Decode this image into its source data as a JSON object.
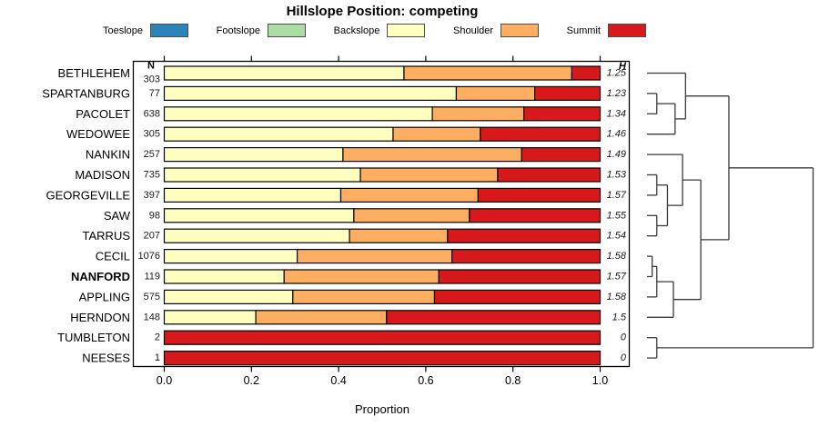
{
  "title": "Hillslope Position: competing",
  "legend": {
    "items": [
      {
        "label": "Toeslope",
        "color": "#2B83BA"
      },
      {
        "label": "Footslope",
        "color": "#ABDDA4"
      },
      {
        "label": "Backslope",
        "color": "#FFFFBF"
      },
      {
        "label": "Shoulder",
        "color": "#FDAE61"
      },
      {
        "label": "Summit",
        "color": "#D7191C"
      }
    ]
  },
  "x_axis": {
    "label": "Proportion",
    "ticks": [
      "0.0",
      "0.2",
      "0.4",
      "0.6",
      "0.8",
      "1.0"
    ],
    "range": [
      0,
      1
    ]
  },
  "table": {
    "n_header": "N",
    "h_header": "H"
  },
  "chart_data": {
    "type": "bar",
    "stacked": true,
    "orientation": "horizontal",
    "title": "Hillslope Position: competing",
    "xlabel": "Proportion",
    "xlim": [
      0,
      1
    ],
    "grid": false,
    "legend_position": "top",
    "series_order": [
      "toeslope",
      "footslope",
      "backslope",
      "shoulder",
      "summit"
    ],
    "colors": {
      "toeslope": "#2B83BA",
      "footslope": "#ABDDA4",
      "backslope": "#FFFFBF",
      "shoulder": "#FDAE61",
      "summit": "#D7191C",
      "bar_stroke": "#000000",
      "dendrogram_stroke": "#3a3a3a"
    },
    "rows": [
      {
        "name": "BETHLEHEM",
        "n": 303,
        "h": "1.25",
        "bold": false,
        "values": {
          "toeslope": 0,
          "footslope": 0,
          "backslope": 0.55,
          "shoulder": 0.385,
          "summit": 0.065
        }
      },
      {
        "name": "SPARTANBURG",
        "n": 77,
        "h": "1.23",
        "bold": false,
        "values": {
          "toeslope": 0,
          "footslope": 0,
          "backslope": 0.67,
          "shoulder": 0.18,
          "summit": 0.15
        }
      },
      {
        "name": "PACOLET",
        "n": 638,
        "h": "1.34",
        "bold": false,
        "values": {
          "toeslope": 0,
          "footslope": 0,
          "backslope": 0.615,
          "shoulder": 0.21,
          "summit": 0.175
        }
      },
      {
        "name": "WEDOWEE",
        "n": 305,
        "h": "1.46",
        "bold": false,
        "values": {
          "toeslope": 0,
          "footslope": 0,
          "backslope": 0.525,
          "shoulder": 0.2,
          "summit": 0.275
        }
      },
      {
        "name": "NANKIN",
        "n": 257,
        "h": "1.49",
        "bold": false,
        "values": {
          "toeslope": 0,
          "footslope": 0,
          "backslope": 0.41,
          "shoulder": 0.41,
          "summit": 0.18
        }
      },
      {
        "name": "MADISON",
        "n": 735,
        "h": "1.53",
        "bold": false,
        "values": {
          "toeslope": 0,
          "footslope": 0,
          "backslope": 0.45,
          "shoulder": 0.315,
          "summit": 0.235
        }
      },
      {
        "name": "GEORGEVILLE",
        "n": 397,
        "h": "1.57",
        "bold": false,
        "values": {
          "toeslope": 0,
          "footslope": 0,
          "backslope": 0.405,
          "shoulder": 0.315,
          "summit": 0.28
        }
      },
      {
        "name": "SAW",
        "n": 98,
        "h": "1.55",
        "bold": false,
        "values": {
          "toeslope": 0,
          "footslope": 0,
          "backslope": 0.435,
          "shoulder": 0.265,
          "summit": 0.3
        }
      },
      {
        "name": "TARRUS",
        "n": 207,
        "h": "1.54",
        "bold": false,
        "values": {
          "toeslope": 0,
          "footslope": 0,
          "backslope": 0.425,
          "shoulder": 0.225,
          "summit": 0.35
        }
      },
      {
        "name": "CECIL",
        "n": 1076,
        "h": "1.58",
        "bold": false,
        "values": {
          "toeslope": 0,
          "footslope": 0,
          "backslope": 0.305,
          "shoulder": 0.355,
          "summit": 0.34
        }
      },
      {
        "name": "NANFORD",
        "n": 119,
        "h": "1.57",
        "bold": true,
        "values": {
          "toeslope": 0,
          "footslope": 0,
          "backslope": 0.275,
          "shoulder": 0.355,
          "summit": 0.37
        }
      },
      {
        "name": "APPLING",
        "n": 575,
        "h": "1.58",
        "bold": false,
        "values": {
          "toeslope": 0,
          "footslope": 0,
          "backslope": 0.295,
          "shoulder": 0.325,
          "summit": 0.38
        }
      },
      {
        "name": "HERNDON",
        "n": 148,
        "h": "1.5",
        "bold": false,
        "values": {
          "toeslope": 0,
          "footslope": 0,
          "backslope": 0.21,
          "shoulder": 0.3,
          "summit": 0.49
        }
      },
      {
        "name": "TUMBLETON",
        "n": 2,
        "h": "0",
        "bold": false,
        "values": {
          "toeslope": 0,
          "footslope": 0,
          "backslope": 0,
          "shoulder": 0,
          "summit": 1.0
        }
      },
      {
        "name": "NEESES",
        "n": 1,
        "h": "0",
        "bold": false,
        "values": {
          "toeslope": 0,
          "footslope": 0,
          "backslope": 0,
          "shoulder": 0,
          "summit": 1.0
        }
      }
    ],
    "dendrogram": {
      "h": 1.0,
      "children": [
        {
          "h": 0.493,
          "children": [
            {
              "h": 0.232,
              "children": [
                {
                  "leaf": "BETHLEHEM"
                },
                {
                  "h": 0.169,
                  "children": [
                    {
                      "h": 0.059,
                      "children": [
                        {
                          "leaf": "SPARTANBURG"
                        },
                        {
                          "leaf": "PACOLET"
                        }
                      ]
                    },
                    {
                      "leaf": "WEDOWEE"
                    }
                  ]
                }
              ]
            },
            {
              "h": 0.324,
              "children": [
                {
                  "h": 0.214,
                  "children": [
                    {
                      "leaf": "NANKIN"
                    },
                    {
                      "h": 0.123,
                      "children": [
                        {
                          "h": 0.059,
                          "children": [
                            {
                              "leaf": "MADISON"
                            },
                            {
                              "leaf": "GEORGEVILLE"
                            }
                          ]
                        },
                        {
                          "h": 0.059,
                          "children": [
                            {
                              "leaf": "SAW"
                            },
                            {
                              "leaf": "TARRUS"
                            }
                          ]
                        }
                      ]
                    }
                  ]
                },
                {
                  "h": 0.159,
                  "children": [
                    {
                      "h": 0.059,
                      "children": [
                        {
                          "h": 0.031,
                          "children": [
                            {
                              "leaf": "CECIL"
                            },
                            {
                              "leaf": "NANFORD"
                            }
                          ]
                        },
                        {
                          "leaf": "APPLING"
                        }
                      ]
                    },
                    {
                      "leaf": "HERNDON"
                    }
                  ]
                }
              ]
            }
          ]
        },
        {
          "h": 0.059,
          "children": [
            {
              "leaf": "TUMBLETON"
            },
            {
              "leaf": "NEESES"
            }
          ]
        }
      ]
    }
  }
}
